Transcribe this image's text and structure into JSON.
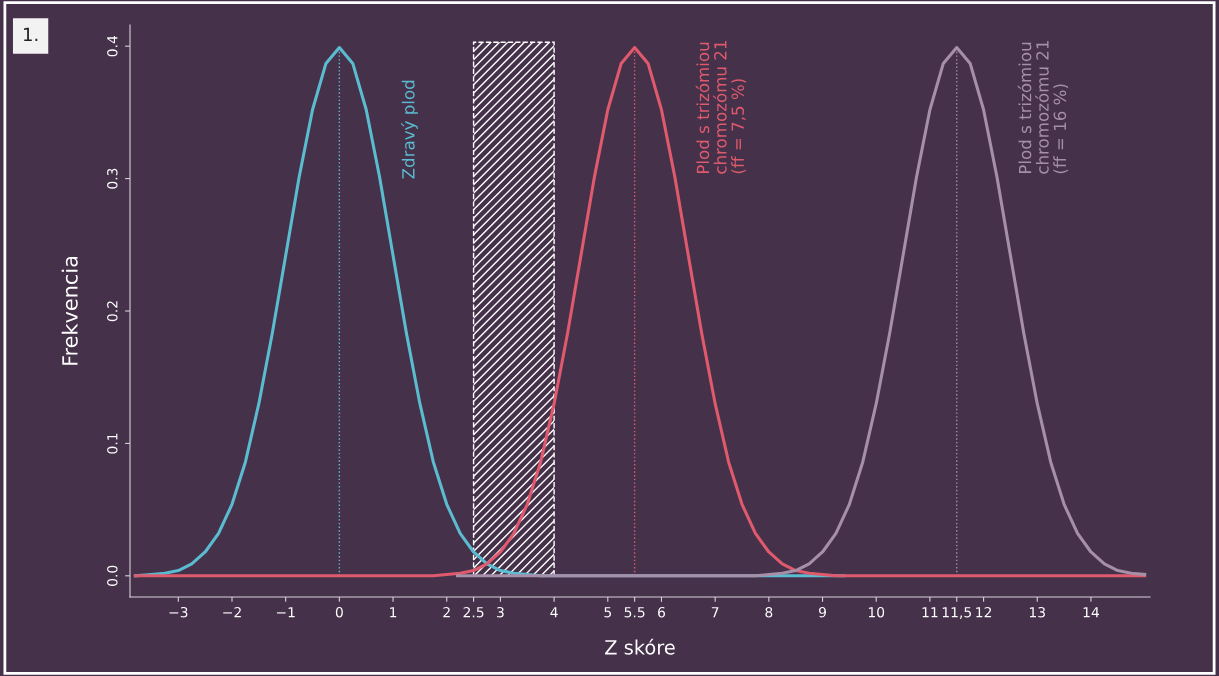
{
  "chart_data": {
    "type": "line",
    "xlabel": "Z skóre",
    "ylabel": "Frekvencia",
    "annotations": [
      "1."
    ],
    "series": [
      {
        "name": "Zdravý plod",
        "color": "#5bbcd1",
        "x": [
          -3.8,
          -3.5,
          -3.25,
          -3,
          -2.75,
          -2.5,
          -2.25,
          -2,
          -1.75,
          -1.5,
          -1.25,
          -1,
          -0.75,
          -0.5,
          -0.25,
          0,
          0.25,
          0.5,
          0.75,
          1,
          1.25,
          1.5,
          1.75,
          2,
          2.25,
          2.5,
          2.75,
          3,
          3.25,
          3.5,
          3.75,
          4.5,
          9.4
        ],
        "values": [
          0,
          0.001,
          0.002,
          0.004,
          0.009,
          0.018,
          0.032,
          0.054,
          0.086,
          0.13,
          0.183,
          0.242,
          0.301,
          0.352,
          0.387,
          0.399,
          0.387,
          0.352,
          0.301,
          0.242,
          0.183,
          0.13,
          0.086,
          0.054,
          0.032,
          0.018,
          0.009,
          0.004,
          0.002,
          0.001,
          0,
          0,
          0
        ]
      },
      {
        "name": "Plod s trizómiou\nchromozómu 21\n(ff = 7,5 %)",
        "color": "#e05a6e",
        "x": [
          -3.8,
          1.75,
          2,
          2.25,
          2.5,
          2.75,
          3,
          3.25,
          3.5,
          3.75,
          4,
          4.25,
          4.5,
          4.75,
          5,
          5.25,
          5.5,
          5.75,
          6,
          6.25,
          6.5,
          6.75,
          7,
          7.25,
          7.5,
          7.75,
          8,
          8.25,
          8.5,
          8.75,
          9,
          9.25,
          15
        ],
        "values": [
          0,
          0,
          0.001,
          0.002,
          0.004,
          0.009,
          0.018,
          0.032,
          0.054,
          0.086,
          0.13,
          0.183,
          0.242,
          0.301,
          0.352,
          0.387,
          0.399,
          0.387,
          0.352,
          0.301,
          0.242,
          0.183,
          0.13,
          0.086,
          0.054,
          0.032,
          0.018,
          0.009,
          0.004,
          0.002,
          0.001,
          0,
          0
        ]
      },
      {
        "name": "Plod s trizómiou\nchromozómu 21\n(ff = 16 %)",
        "color": "#a78fa8",
        "x": [
          2.2,
          7.75,
          8,
          8.25,
          8.5,
          8.75,
          9,
          9.25,
          9.5,
          9.75,
          10,
          10.25,
          10.5,
          10.75,
          11,
          11.25,
          11.5,
          11.75,
          12,
          12.25,
          12.5,
          12.75,
          13,
          13.25,
          13.5,
          13.75,
          14,
          14.25,
          14.5,
          14.75,
          15
        ],
        "values": [
          0,
          0,
          0.001,
          0.002,
          0.004,
          0.009,
          0.018,
          0.032,
          0.054,
          0.086,
          0.13,
          0.183,
          0.242,
          0.301,
          0.352,
          0.387,
          0.399,
          0.387,
          0.352,
          0.301,
          0.242,
          0.183,
          0.13,
          0.086,
          0.054,
          0.032,
          0.018,
          0.009,
          0.004,
          0.002,
          0.001
        ]
      }
    ],
    "ref_lines": [
      {
        "axis": "x",
        "value": 0,
        "color": "#5bbcd1",
        "line_style": "dotted"
      },
      {
        "axis": "x",
        "value": 5.5,
        "color": "#e05a6e",
        "line_style": "dotted"
      },
      {
        "axis": "x",
        "value": 11.5,
        "color": "#a78fa8",
        "line_style": "dotted"
      }
    ],
    "bands": [
      {
        "axis": "x",
        "from": 2.5,
        "to": 4,
        "color": "#ffffff"
      }
    ],
    "xlim": [
      -3.9,
      15.1
    ],
    "ylim": [
      -0.016,
      0.416
    ],
    "xticks": [
      {
        "value": -3,
        "label": "−3"
      },
      {
        "value": -2,
        "label": "−2"
      },
      {
        "value": -1,
        "label": "−1"
      },
      0,
      1,
      2,
      2.5,
      3,
      4,
      5,
      5.5,
      6,
      7,
      8,
      9,
      10,
      11,
      {
        "value": 11.5,
        "label": "11,5"
      },
      12,
      13,
      14
    ],
    "yticks": [
      {
        "value": 0,
        "label": "0.0"
      },
      0.1,
      0.2,
      0.3,
      0.4
    ],
    "grid": false,
    "legend": false,
    "marker": "none",
    "line_style": "solid"
  }
}
